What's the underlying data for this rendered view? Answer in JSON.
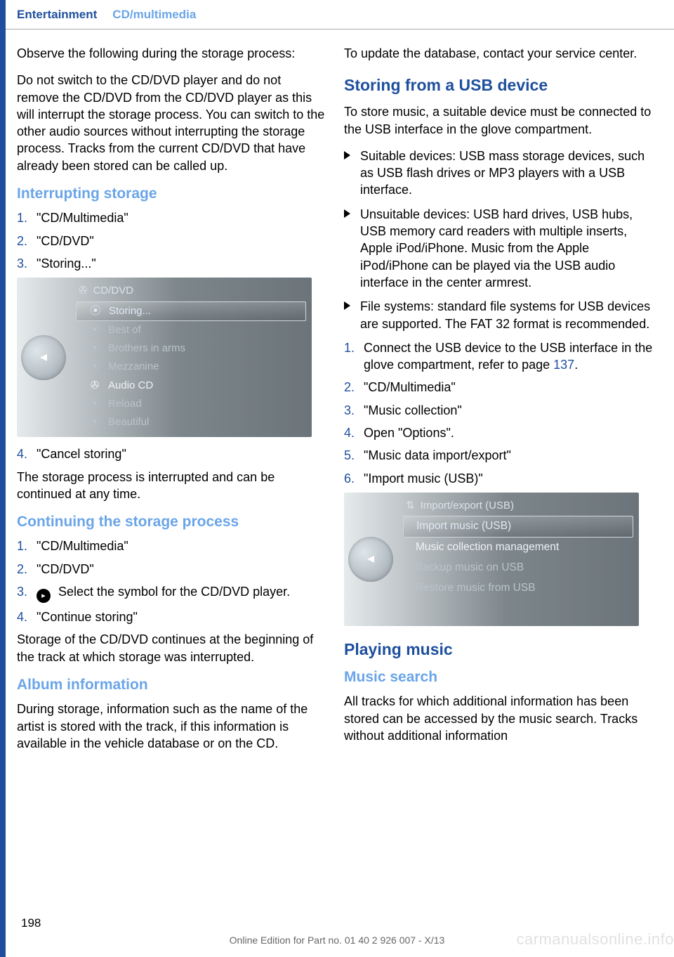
{
  "header": {
    "section": "Entertainment",
    "subsection": "CD/multimedia"
  },
  "left": {
    "p1": "Observe the following during the storage proc­ess:",
    "p2": "Do not switch to the CD/DVD player and do not remove the CD/DVD from the CD/DVD player as this will interrupt the storage process. You can switch to the other audio sources without interrupting the storage process. Tracks from the current CD/DVD that have already been stored can be called up.",
    "h1": "Interrupting storage",
    "ol1": [
      {
        "n": "1.",
        "t": "\"CD/Multimedia\""
      },
      {
        "n": "2.",
        "t": "\"CD/DVD\""
      },
      {
        "n": "3.",
        "t": "\"Storing...\""
      }
    ],
    "fig1": {
      "title": "CD/DVD",
      "rows": [
        {
          "glyph": "⦿",
          "label": "Storing...",
          "style": "selected"
        },
        {
          "glyph": "⦿",
          "label": "Best of",
          "style": ""
        },
        {
          "glyph": "⦿",
          "label": "Brothers in arms",
          "style": ""
        },
        {
          "glyph": "⦿",
          "label": "Mezzanine",
          "style": ""
        },
        {
          "glyph": "✇",
          "label": "Audio CD",
          "style": "white"
        },
        {
          "glyph": "⦿",
          "label": "Reload",
          "style": ""
        },
        {
          "glyph": "⦿",
          "label": "Beautiful",
          "style": ""
        }
      ]
    },
    "ol2": [
      {
        "n": "4.",
        "t": "\"Cancel storing\""
      }
    ],
    "p3": "The storage process is interrupted and can be continued at any time.",
    "h2": "Continuing the storage process",
    "ol3": [
      {
        "n": "1.",
        "t": "\"CD/Multimedia\""
      },
      {
        "n": "2.",
        "t": "\"CD/DVD\""
      },
      {
        "n": "3.",
        "t": " Select the symbol for the CD/DVD player.",
        "icon": true
      },
      {
        "n": "4.",
        "t": "\"Continue storing\""
      }
    ],
    "p4": "Storage of the CD/DVD continues at the begin­ning of the track at which storage was inter­rupted.",
    "h3": "Album information",
    "p5": "During storage, information such as the name of the artist is stored with the track, if this infor­mation is available in the vehicle database or on the CD."
  },
  "right": {
    "p1": "To update the database, contact your service center.",
    "h1": "Storing from a USB device",
    "p2": "To store music, a suitable device must be con­nected to the USB interface in the glove com­partment.",
    "ul1": [
      "Suitable devices: USB mass storage devi­ces, such as USB flash drives or MP3 play­ers with a USB interface.",
      "Unsuitable devices: USB hard drives, USB hubs, USB memory card readers with mul­tiple inserts, Apple iPod/iPhone. Music from the Apple iPod/iPhone can be played via the USB audio interface in the center armrest.",
      "File systems: standard file systems for USB devices are supported. The FAT 32 format is recommended."
    ],
    "ol1": [
      {
        "n": "1.",
        "t": "Connect the USB device to the USB inter­face in the glove compartment, refer to page ",
        "ref": "137",
        "suffix": "."
      },
      {
        "n": "2.",
        "t": "\"CD/Multimedia\""
      },
      {
        "n": "3.",
        "t": "\"Music collection\""
      },
      {
        "n": "4.",
        "t": "Open \"Options\"."
      },
      {
        "n": "5.",
        "t": "\"Music data import/export\""
      },
      {
        "n": "6.",
        "t": "\"Import music (USB)\""
      }
    ],
    "fig2": {
      "title": "Import/export (USB)",
      "rows": [
        {
          "glyph": "",
          "label": "Import music (USB)",
          "style": "selected"
        },
        {
          "glyph": "",
          "label": "Music collection management",
          "style": "white"
        },
        {
          "glyph": "",
          "label": "Backup music on USB",
          "style": ""
        },
        {
          "glyph": "",
          "label": "Restore music from USB",
          "style": ""
        }
      ]
    },
    "h2": "Playing music",
    "h3": "Music search",
    "p3": "All tracks for which additional information has been stored can be accessed by the music search. Tracks without additional information"
  },
  "footer": {
    "pagenum": "198",
    "line": "Online Edition for Part no. 01 40 2 926 007 - X/13",
    "watermark": "carmanualsonline.info"
  },
  "colors": {
    "brand_blue": "#1e4f9e",
    "light_blue": "#6aa5e8"
  }
}
